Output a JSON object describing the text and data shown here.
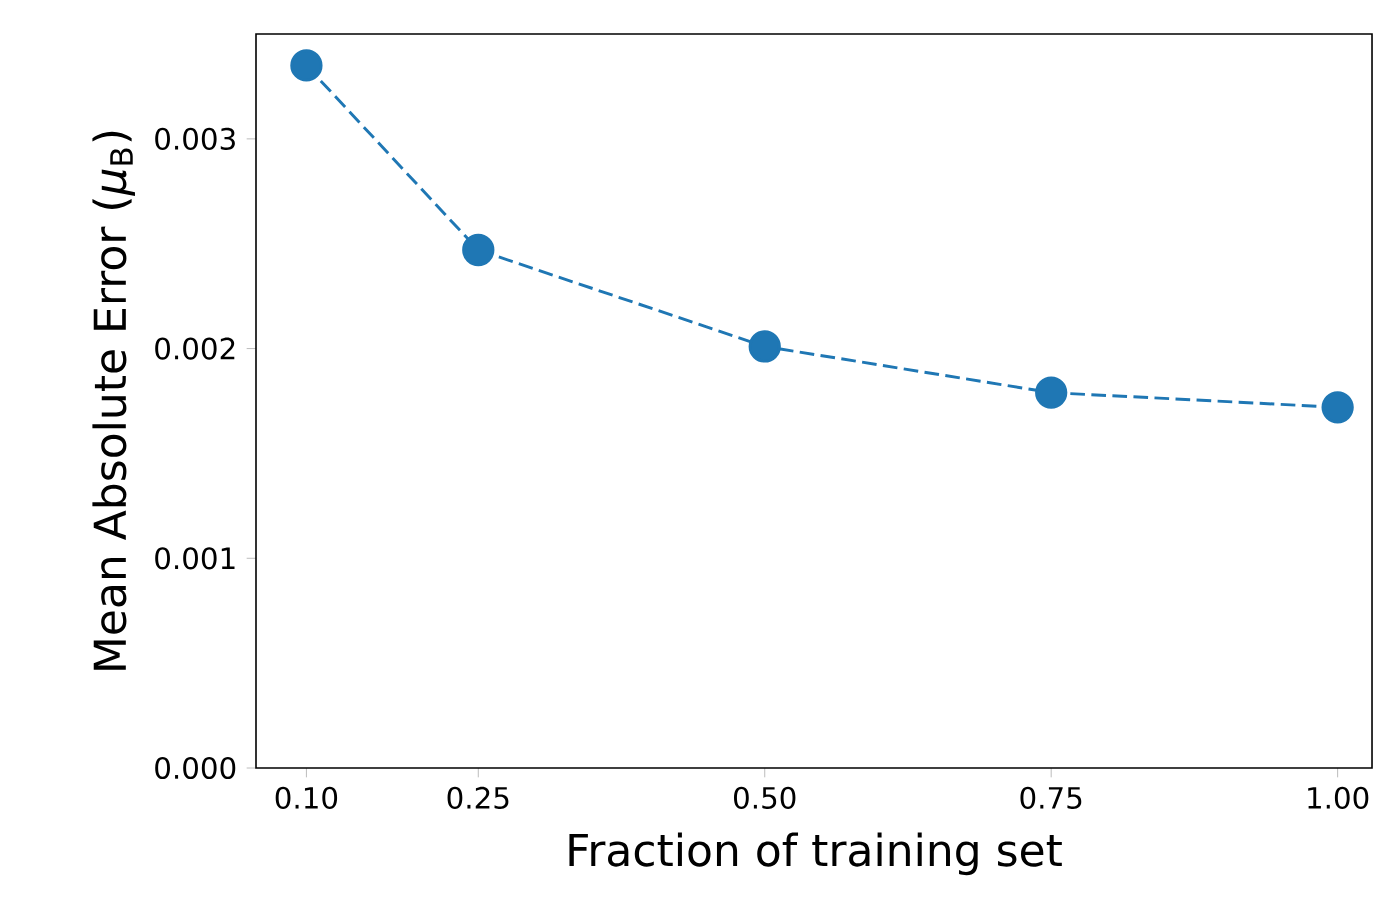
{
  "chart_data": {
    "type": "line",
    "xlabel": "Fraction of training set",
    "ylabel": "Mean Absolute Error (*μ*$_{B}$)",
    "x": [
      0.1,
      0.25,
      0.5,
      0.75,
      1.0
    ],
    "series": [
      {
        "color": "#1f77b4",
        "values": [
          0.00335,
          0.00247,
          0.00201,
          0.00179,
          0.00172
        ]
      }
    ],
    "xlim": [
      0.056,
      1.03
    ],
    "ylim": [
      0,
      0.0035
    ],
    "xticks": [
      {
        "value": 0.1,
        "label": "0.10"
      },
      {
        "value": 0.25,
        "label": "0.25"
      },
      {
        "value": 0.5,
        "label": "0.50"
      },
      {
        "value": 0.75,
        "label": "0.75"
      },
      {
        "value": 1.0,
        "label": "1.00"
      }
    ],
    "yticks": [
      {
        "value": 0,
        "label": "0.000"
      },
      {
        "value": 0.001,
        "label": "0.001"
      },
      {
        "value": 0.002,
        "label": "0.002"
      },
      {
        "value": 0.003,
        "label": "0.003"
      }
    ],
    "marker": "circle",
    "line_style": "dashed",
    "grid": false
  }
}
